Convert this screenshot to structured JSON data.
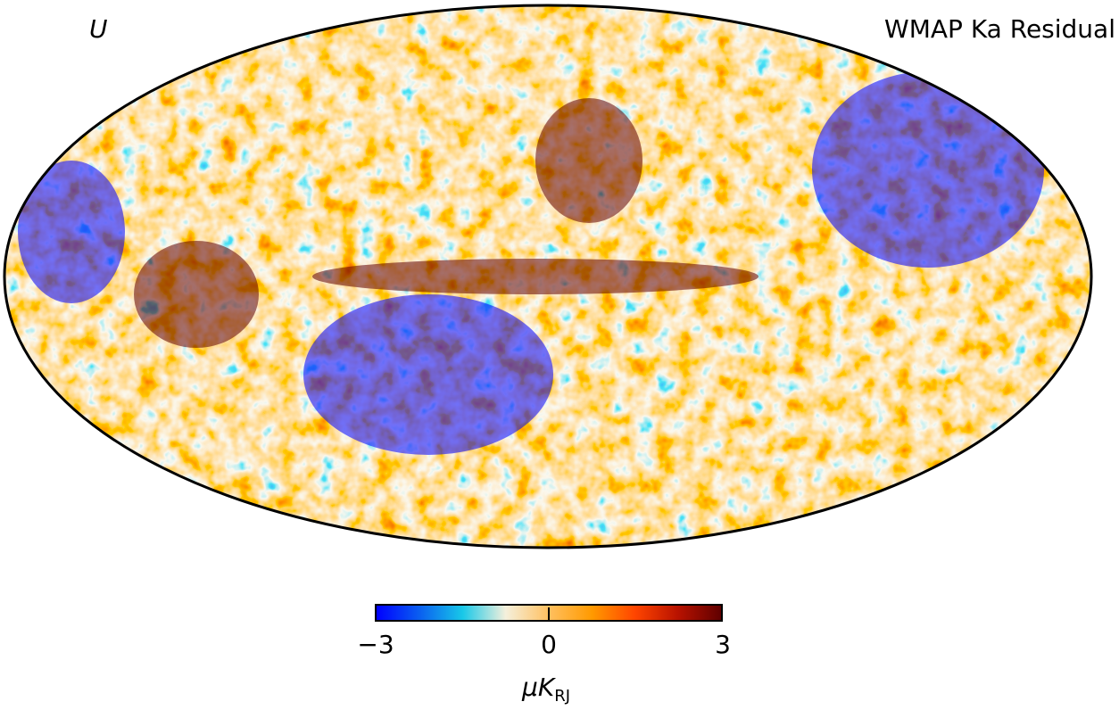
{
  "map": {
    "stokes_param": "U",
    "title": "WMAP Ka Residual",
    "projection": "mollweide"
  },
  "colorbar": {
    "colors": [
      "#0000ff",
      "#0a5ff0",
      "#18c8e8",
      "#f5f0dc",
      "#ffc060",
      "#ff9a00",
      "#ff4500",
      "#b81200",
      "#600000"
    ],
    "min_label": "−3",
    "mid_label": "0",
    "max_label": "3",
    "unit_main": "μK",
    "unit_sub": "RJ",
    "range": [
      -3,
      3
    ]
  }
}
